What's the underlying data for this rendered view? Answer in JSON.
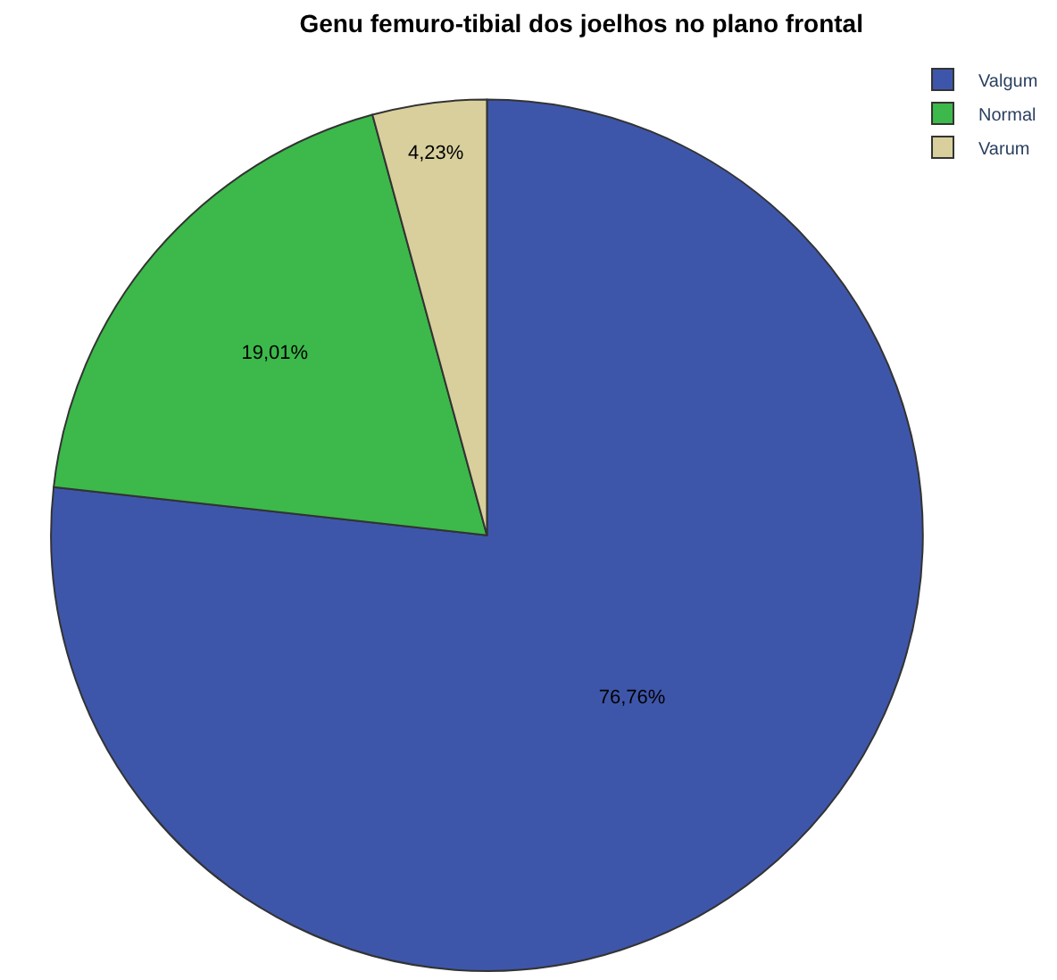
{
  "chart_data": {
    "type": "pie",
    "title": "Genu femuro-tibial dos joelhos no plano frontal",
    "categories": [
      "Valgum",
      "Normal",
      "Varum"
    ],
    "values": [
      76.76,
      19.01,
      4.23
    ],
    "value_labels": [
      "76,76%",
      "19,01%",
      "4,23%"
    ],
    "colors": [
      "#3e56aa",
      "#3cb94a",
      "#d8cf9c"
    ],
    "legend": "top right"
  }
}
